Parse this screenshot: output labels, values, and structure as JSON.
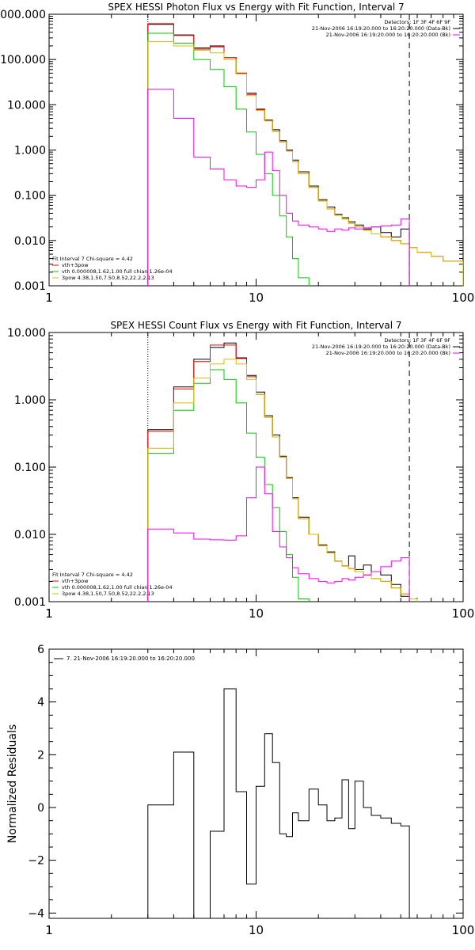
{
  "chart_data": [
    {
      "type": "line",
      "title": "SPEX HESSI Photon Flux vs Energy with Fit Function, Interval 7",
      "x_scale": "log",
      "y_scale": "log",
      "xlim": [
        1,
        100
      ],
      "ylim": [
        0.001,
        1000
      ],
      "x_tick_labels": [
        "1",
        "10",
        "100"
      ],
      "y_tick_labels": [
        "0.001",
        "0.010",
        "0.100",
        "1.000",
        "10.000",
        "100.000",
        "1000.000"
      ],
      "top_legend": [
        {
          "text": "Detectors: 1F 3F 4F 6F 9F",
          "color": "#000000"
        },
        {
          "text": "21-Nov-2006 16:19:20.000 to 16:20:20.000 (Data-Bk)",
          "color": "#000000"
        },
        {
          "text": "21-Nov-2006 16:19:20.000 to 16:20:20.000 (Bk)",
          "color": "#ff00ff"
        }
      ],
      "fit_legend": [
        {
          "text": "Fit Interval 7   Chi-square = 4.42",
          "color": "#000000"
        },
        {
          "text": "vth+3pow",
          "color": "#ff0000"
        },
        {
          "text": "vth 0.000008,1.62,1.00  full chian 1.26e-04",
          "color": "#00cc00"
        },
        {
          "text": "3pow 4.38,1.50,7.50,8.52,22.2,2.13",
          "color": "#d4c000"
        }
      ],
      "vlines": [
        {
          "x": 3,
          "style": "dotted",
          "color": "#000000"
        },
        {
          "x": 55,
          "style": "dashed",
          "color": "#000000"
        }
      ],
      "bin_edges": [
        3,
        4,
        5,
        6,
        7,
        8,
        9,
        10,
        11,
        12,
        13,
        14,
        15,
        16,
        18,
        20,
        22,
        24,
        26,
        28,
        30,
        33,
        36,
        40,
        45,
        50,
        55,
        60,
        70,
        80,
        100
      ],
      "series": [
        {
          "name": "Data-Bk",
          "color": "#000000",
          "values": [
            600,
            350,
            180,
            200,
            110,
            50,
            18,
            8,
            4.6,
            2.8,
            1.6,
            1.0,
            0.6,
            0.33,
            0.16,
            0.08,
            0.055,
            0.038,
            0.032,
            0.026,
            0.022,
            0.018,
            0.02,
            0.015,
            0.012,
            0.018
          ]
        },
        {
          "name": "vth+3pow",
          "color": "#ff0000",
          "values": [
            620,
            340,
            170,
            190,
            110,
            50,
            17,
            7.8,
            4.5,
            2.6,
            1.5,
            0.95,
            0.55,
            0.3,
            0.15,
            0.075,
            0.05,
            0.036,
            0.03,
            0.024,
            0.02,
            0.017,
            0.014,
            0.012,
            0.01,
            0.0085,
            0.007,
            0.0055,
            0.0045,
            0.0035
          ]
        },
        {
          "name": "vth",
          "color": "#00cc00",
          "values": [
            380,
            230,
            100,
            60,
            25,
            8,
            2.5,
            0.8,
            0.3,
            0.1,
            0.035,
            0.012,
            0.004,
            0.0015
          ]
        },
        {
          "name": "3pow",
          "color": "#d4c000",
          "values": [
            250,
            200,
            160,
            140,
            100,
            48,
            16,
            7.5,
            4.4,
            2.6,
            1.5,
            0.95,
            0.55,
            0.3,
            0.15,
            0.075,
            0.05,
            0.036,
            0.03,
            0.024,
            0.02,
            0.017,
            0.014,
            0.012,
            0.01,
            0.0085,
            0.007,
            0.0055,
            0.0045,
            0.0035
          ]
        },
        {
          "name": "Bk",
          "color": "#ff00ff",
          "values": [
            22,
            5,
            0.7,
            0.38,
            0.22,
            0.16,
            0.15,
            0.22,
            0.9,
            0.35,
            0.1,
            0.04,
            0.027,
            0.022,
            0.02,
            0.018,
            0.016,
            0.018,
            0.017,
            0.019,
            0.018,
            0.019,
            0.02,
            0.021,
            0.022,
            0.03
          ]
        }
      ]
    },
    {
      "type": "line",
      "title": "SPEX HESSI Count Flux vs Energy with Fit Function, Interval 7",
      "x_scale": "log",
      "y_scale": "log",
      "xlim": [
        1,
        100
      ],
      "ylim": [
        0.001,
        10
      ],
      "x_tick_labels": [
        "1",
        "10",
        "100"
      ],
      "y_tick_labels": [
        "0.001",
        "0.010",
        "0.100",
        "1.000",
        "10.000"
      ],
      "top_legend": [
        {
          "text": "Detectors: 1F 3F 4F 6F 9F",
          "color": "#000000"
        },
        {
          "text": "21-Nov-2006 16:19:20.000 to 16:20:20.000 (Data-Bk)",
          "color": "#000000"
        },
        {
          "text": "21-Nov-2006 16:19:20.000 to 16:20:20.000 (Bk)",
          "color": "#ff00ff"
        }
      ],
      "fit_legend": [
        {
          "text": "Fit Interval 7   Chi-square = 4.42",
          "color": "#000000"
        },
        {
          "text": "vth+3pow",
          "color": "#ff0000"
        },
        {
          "text": "vth 0.000008,1.62,1.00  full chian 1.26e-04",
          "color": "#00cc00"
        },
        {
          "text": "3pow 4.38,1.50,7.50,8.52,22.2,2.13",
          "color": "#d4c000"
        }
      ],
      "vlines": [
        {
          "x": 3,
          "style": "dotted",
          "color": "#000000"
        },
        {
          "x": 55,
          "style": "dashed",
          "color": "#000000"
        }
      ],
      "bin_edges": [
        3,
        4,
        5,
        6,
        7,
        8,
        9,
        10,
        11,
        12,
        13,
        14,
        15,
        16,
        18,
        20,
        22,
        24,
        26,
        28,
        30,
        33,
        36,
        40,
        45,
        50,
        55,
        60,
        70,
        80,
        100
      ],
      "series": [
        {
          "name": "Data-Bk",
          "color": "#000000",
          "values": [
            0.36,
            1.55,
            4.0,
            6.0,
            7.0,
            4.2,
            2.3,
            1.3,
            0.58,
            0.3,
            0.145,
            0.07,
            0.035,
            0.018,
            0.01,
            0.007,
            0.0055,
            0.004,
            0.0034,
            0.0048,
            0.003,
            0.0035,
            0.0028,
            0.0025,
            0.0018,
            0.0012
          ]
        },
        {
          "name": "vth+3pow",
          "color": "#ff0000",
          "values": [
            0.34,
            1.45,
            3.7,
            6.5,
            6.5,
            4.1,
            2.2,
            1.2,
            0.55,
            0.28,
            0.14,
            0.068,
            0.034,
            0.017,
            0.01,
            0.0068,
            0.0053,
            0.004,
            0.0034,
            0.0031,
            0.0028,
            0.0025,
            0.0022,
            0.002,
            0.0016,
            0.0013,
            0.0011,
            0.0009,
            0.0008,
            0.0007
          ]
        },
        {
          "name": "vth",
          "color": "#00cc00",
          "values": [
            0.16,
            0.7,
            1.75,
            2.8,
            2.0,
            0.9,
            0.32,
            0.14,
            0.055,
            0.025,
            0.011,
            0.005,
            0.0023,
            0.0011
          ]
        },
        {
          "name": "3pow",
          "color": "#d4c000",
          "values": [
            0.19,
            0.9,
            2.1,
            3.4,
            4.0,
            3.4,
            2.0,
            1.2,
            0.55,
            0.28,
            0.14,
            0.068,
            0.034,
            0.017,
            0.01,
            0.0068,
            0.0053,
            0.004,
            0.0034,
            0.0031,
            0.0028,
            0.0025,
            0.0022,
            0.002,
            0.0016,
            0.0013,
            0.0011,
            0.0009,
            0.0008,
            0.0007
          ]
        },
        {
          "name": "Bk",
          "color": "#ff00ff",
          "values": [
            0.012,
            0.0105,
            0.0085,
            0.0083,
            0.0082,
            0.0095,
            0.035,
            0.1,
            0.04,
            0.011,
            0.0065,
            0.0045,
            0.0032,
            0.0026,
            0.0022,
            0.002,
            0.0019,
            0.002,
            0.0022,
            0.0021,
            0.0023,
            0.0025,
            0.0028,
            0.0033,
            0.004,
            0.0045
          ]
        }
      ]
    },
    {
      "type": "line",
      "title": "",
      "x_scale": "log",
      "y_scale": "linear",
      "xlim": [
        1,
        100
      ],
      "ylim": [
        -4.2,
        6
      ],
      "x_tick_labels": [
        "1",
        "10",
        "100"
      ],
      "y_tick_labels": [
        "−4",
        "−2",
        "0",
        "2",
        "4",
        "6"
      ],
      "ylabel": "Normalized Residuals",
      "legend": [
        {
          "text": "7. 21-Nov-2006 16:19:20.000 to 16:20:20.000",
          "color": "#000000"
        }
      ],
      "bin_edges": [
        3,
        4,
        5,
        6,
        7,
        8,
        9,
        10,
        11,
        12,
        13,
        14,
        15,
        16,
        18,
        20,
        22,
        24,
        26,
        28,
        30,
        33,
        36,
        40,
        45,
        50,
        55
      ],
      "series": [
        {
          "name": "7. 21-Nov-2006 16:19:20.000 to 16:20:20.000",
          "color": "#000000",
          "values": [
            0.1,
            2.1,
            -4.2,
            -0.9,
            4.5,
            0.6,
            -2.9,
            0.8,
            2.8,
            1.7,
            -1.0,
            -1.1,
            -0.2,
            -0.5,
            0.7,
            0.1,
            -0.5,
            -0.4,
            1.05,
            -0.8,
            1.0,
            0.0,
            -0.3,
            -0.4,
            -0.6,
            -0.7
          ]
        }
      ]
    }
  ]
}
